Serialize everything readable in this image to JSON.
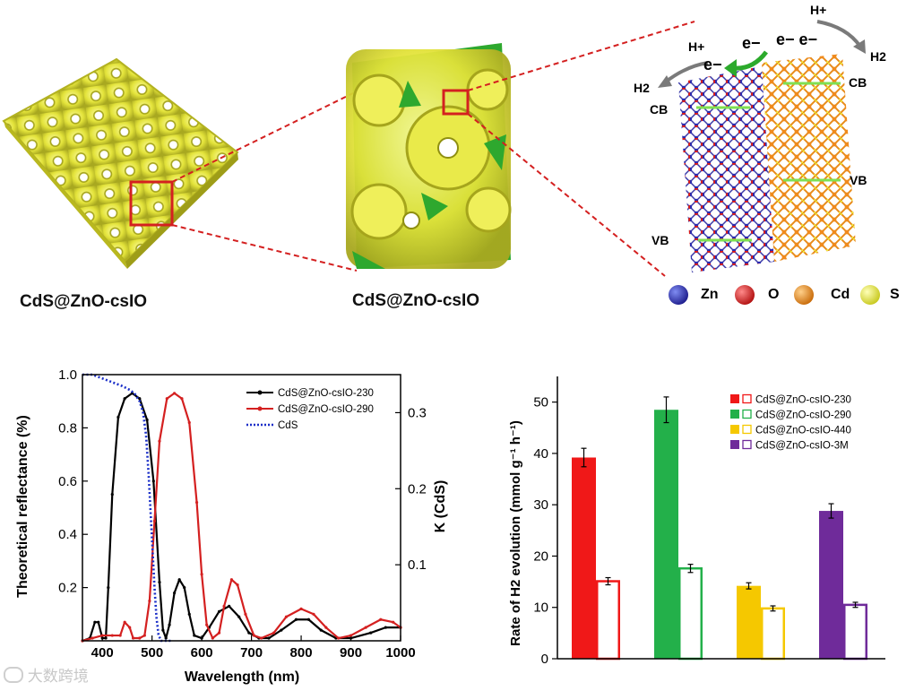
{
  "top_panel": {
    "caption_left": "CdS@ZnO-csIO",
    "caption_middle": "CdS@ZnO-csIO",
    "band_labels": {
      "cb_left": "CB",
      "vb_left": "VB",
      "cb_right": "CB",
      "vb_right": "VB"
    },
    "species": {
      "h_plus": "H+",
      "h2": "H2",
      "electron": "e−",
      "electron_pair": "e− e−"
    },
    "atom_legend": [
      {
        "label": "Zn",
        "color": "#2b2bb0"
      },
      {
        "label": "O",
        "color": "#e02020"
      },
      {
        "label": "Cd",
        "color": "#ef8a1a"
      },
      {
        "label": "S",
        "color": "#e8ea3c"
      }
    ],
    "colors": {
      "ioframe": "#e6e63a",
      "ioframe_shadow": "#b9b81f",
      "wedge_green": "#2ea82e",
      "zoom_box": "#d42020",
      "band_line": "#7fe052",
      "arrow_gray": "#7a7a7a",
      "arrow_green": "#2caa2c"
    }
  },
  "chart_data": [
    {
      "type": "line",
      "xlabel": "Wavelength (nm)",
      "ylabel": "Theoretical reflectance (%)",
      "y2label": "K (CdS)",
      "xlim": [
        360,
        1000
      ],
      "ylim": [
        0,
        1.0
      ],
      "y2lim": [
        0,
        0.35
      ],
      "x_ticks": [
        400,
        500,
        600,
        700,
        800,
        900,
        1000
      ],
      "y_ticks": [
        0.2,
        0.4,
        0.6,
        0.8,
        1.0
      ],
      "y_tick_labels": [
        "0.2",
        "0.4",
        "0.6",
        "0.8",
        "1.0"
      ],
      "y2_ticks": [
        0.1,
        0.2,
        0.3
      ],
      "y2_tick_labels": [
        "0.1",
        "0.2",
        "0.3"
      ],
      "legend_position": "top-right",
      "series": [
        {
          "name": "CdS@ZnO-csIO-230",
          "color": "#000000",
          "style": "solid-dots",
          "points": [
            [
              360,
              0
            ],
            [
              375,
              0.01
            ],
            [
              385,
              0.07
            ],
            [
              392,
              0.07
            ],
            [
              400,
              0.01
            ],
            [
              407,
              0.01
            ],
            [
              412,
              0.2
            ],
            [
              420,
              0.55
            ],
            [
              432,
              0.84
            ],
            [
              445,
              0.91
            ],
            [
              460,
              0.93
            ],
            [
              475,
              0.91
            ],
            [
              490,
              0.83
            ],
            [
              503,
              0.6
            ],
            [
              515,
              0.22
            ],
            [
              522,
              0.04
            ],
            [
              528,
              0.01
            ],
            [
              535,
              0.06
            ],
            [
              545,
              0.18
            ],
            [
              555,
              0.23
            ],
            [
              565,
              0.2
            ],
            [
              575,
              0.1
            ],
            [
              585,
              0.02
            ],
            [
              600,
              0.01
            ],
            [
              615,
              0.05
            ],
            [
              635,
              0.11
            ],
            [
              655,
              0.13
            ],
            [
              675,
              0.09
            ],
            [
              695,
              0.03
            ],
            [
              715,
              0.01
            ],
            [
              735,
              0.01
            ],
            [
              760,
              0.04
            ],
            [
              790,
              0.08
            ],
            [
              815,
              0.08
            ],
            [
              840,
              0.04
            ],
            [
              870,
              0.01
            ],
            [
              900,
              0.01
            ],
            [
              940,
              0.03
            ],
            [
              970,
              0.05
            ],
            [
              1000,
              0.05
            ]
          ]
        },
        {
          "name": "CdS@ZnO-csIO-290",
          "color": "#d42020",
          "style": "solid-dots",
          "points": [
            [
              360,
              0
            ],
            [
              380,
              0.01
            ],
            [
              400,
              0.02
            ],
            [
              420,
              0.02
            ],
            [
              436,
              0.02
            ],
            [
              445,
              0.07
            ],
            [
              455,
              0.05
            ],
            [
              462,
              0.01
            ],
            [
              475,
              0.01
            ],
            [
              485,
              0.02
            ],
            [
              495,
              0.15
            ],
            [
              505,
              0.45
            ],
            [
              515,
              0.75
            ],
            [
              530,
              0.91
            ],
            [
              545,
              0.93
            ],
            [
              560,
              0.91
            ],
            [
              575,
              0.82
            ],
            [
              590,
              0.52
            ],
            [
              600,
              0.25
            ],
            [
              610,
              0.06
            ],
            [
              622,
              0.01
            ],
            [
              635,
              0.03
            ],
            [
              645,
              0.13
            ],
            [
              660,
              0.23
            ],
            [
              672,
              0.21
            ],
            [
              688,
              0.1
            ],
            [
              705,
              0.02
            ],
            [
              720,
              0.01
            ],
            [
              745,
              0.03
            ],
            [
              770,
              0.09
            ],
            [
              800,
              0.12
            ],
            [
              825,
              0.1
            ],
            [
              850,
              0.05
            ],
            [
              875,
              0.01
            ],
            [
              900,
              0.02
            ],
            [
              930,
              0.05
            ],
            [
              960,
              0.08
            ],
            [
              985,
              0.07
            ],
            [
              1000,
              0.05
            ]
          ]
        },
        {
          "name": "CdS",
          "color": "#1a2ec8",
          "style": "dotted",
          "axis": "right",
          "points": [
            [
              360,
              0.36
            ],
            [
              380,
              0.35
            ],
            [
              400,
              0.345
            ],
            [
              420,
              0.34
            ],
            [
              440,
              0.335
            ],
            [
              455,
              0.33
            ],
            [
              465,
              0.325
            ],
            [
              475,
              0.315
            ],
            [
              482,
              0.3
            ],
            [
              488,
              0.27
            ],
            [
              493,
              0.22
            ],
            [
              497,
              0.17
            ],
            [
              501,
              0.12
            ],
            [
              505,
              0.07
            ],
            [
              509,
              0.03
            ],
            [
              513,
              0.008
            ],
            [
              518,
              0.0
            ],
            [
              540,
              0.0
            ]
          ]
        }
      ]
    },
    {
      "type": "bar",
      "ylabel": "Rate of H2 evolution  (mmol g⁻¹ h⁻¹)",
      "ylim": [
        0,
        55
      ],
      "y_ticks": [
        0,
        10,
        20,
        30,
        40,
        50
      ],
      "y_tick_labels": [
        "0",
        "10",
        "20",
        "30",
        "40",
        "50"
      ],
      "legend_position": "top-right",
      "series": [
        {
          "name": "CdS@ZnO-csIO-230",
          "color": "#f01818",
          "values": [
            39.2,
            15.1
          ],
          "errors": [
            1.8,
            0.7
          ]
        },
        {
          "name": "CdS@ZnO-csIO-290",
          "color": "#23b04a",
          "values": [
            48.5,
            17.6
          ],
          "errors": [
            2.5,
            0.8
          ]
        },
        {
          "name": "CdS@ZnO-csIO-440",
          "color": "#f5c800",
          "values": [
            14.2,
            9.8
          ],
          "errors": [
            0.6,
            0.5
          ]
        },
        {
          "name": "CdS@ZnO-csIO-3M",
          "color": "#6f2b9a",
          "values": [
            28.8,
            10.5
          ],
          "errors": [
            1.4,
            0.5
          ]
        }
      ]
    }
  ],
  "watermark": {
    "text": "大数跨境"
  }
}
